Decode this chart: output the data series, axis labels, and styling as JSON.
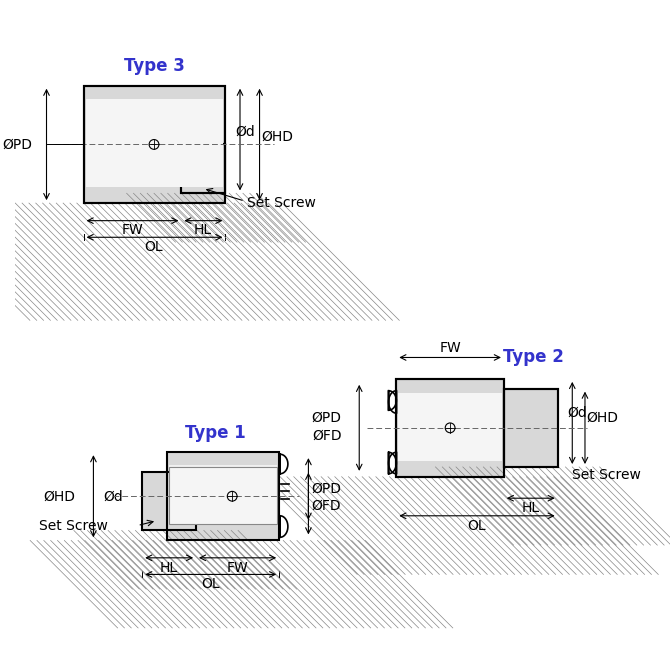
{
  "bg_color": "#ffffff",
  "line_color": "#000000",
  "hatch_color": "#000000",
  "dim_color": "#000000",
  "type_color": "#3333cc",
  "type1_label": "Type 1",
  "type2_label": "Type 2",
  "type3_label": "Type 3",
  "font_size_label": 10,
  "font_size_type": 12,
  "labels": [
    "OL",
    "HL",
    "FW",
    "ØFD",
    "ØPD",
    "ØHD",
    "Ød",
    "Set Screw"
  ]
}
